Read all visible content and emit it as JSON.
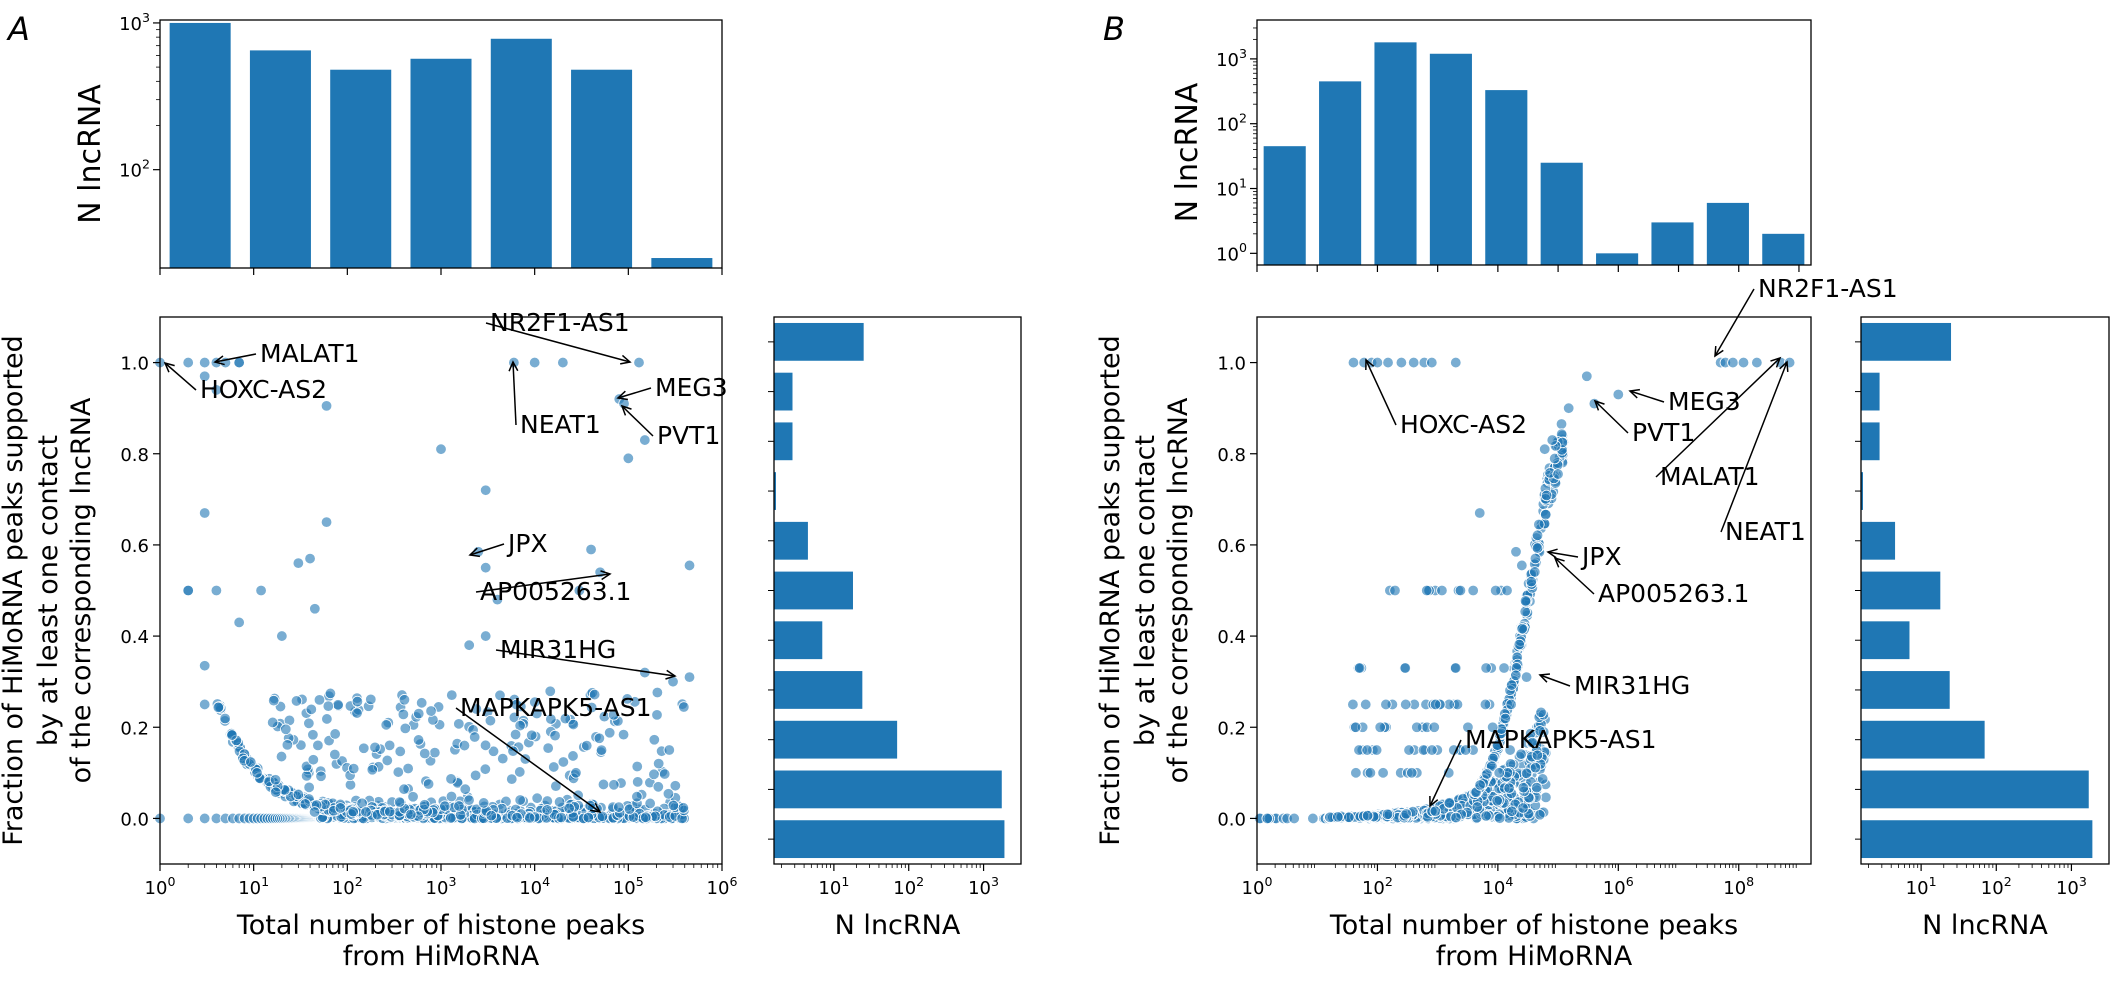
{
  "panels": [
    {
      "letter": "A",
      "hist_top": {
        "ylabel": "N lncRNA",
        "yticks": [
          "10^2",
          "10^3"
        ],
        "values": [
          1000,
          650,
          480,
          570,
          780,
          480,
          25
        ]
      },
      "scatter": {
        "xlabel": [
          "Total number of histone peaks",
          "from HiMoRNA"
        ],
        "ylabel": [
          "Fraction of HiMoRNA peaks supported",
          "by at least one contact",
          "of the corresponding lncRNA"
        ],
        "xticks": [
          "10^0",
          "10^1",
          "10^2",
          "10^3",
          "10^4",
          "10^5",
          "10^6"
        ],
        "yticks": [
          "0.0",
          "0.2",
          "0.4",
          "0.6",
          "0.8",
          "1.0"
        ],
        "annotations": [
          {
            "text": "MALAT1",
            "x": 7,
            "y": 1.0
          },
          {
            "text": "HOXC-AS2",
            "x": 1,
            "y": 1.0
          },
          {
            "text": "NR2F1-AS1",
            "x": 130000,
            "y": 1.0
          },
          {
            "text": "MEG3",
            "x": 80000,
            "y": 0.92
          },
          {
            "text": "NEAT1",
            "x": 6000,
            "y": 1.0
          },
          {
            "text": "PVT1",
            "x": 90000,
            "y": 0.91
          },
          {
            "text": "JPX",
            "x": 2500,
            "y": 0.585
          },
          {
            "text": "AP005263.1",
            "x": 40000,
            "y": 0.54
          },
          {
            "text": "MIR31HG",
            "x": 400000,
            "y": 0.31
          },
          {
            "text": "MAPKAPK5-AS1",
            "x": 60000,
            "y": 0.0
          }
        ]
      },
      "hist_right": {
        "xlabel": "N lncRNA",
        "xticks": [
          "10^1",
          "10^2",
          "10^3"
        ],
        "values": [
          1900,
          1750,
          70,
          24,
          7,
          18,
          4.5,
          1.6,
          2.8,
          2.8,
          25
        ]
      }
    },
    {
      "letter": "B",
      "hist_top": {
        "ylabel": "N lncRNA",
        "yticks": [
          "10^0",
          "10^1",
          "10^2",
          "10^3"
        ],
        "values": [
          45,
          450,
          1800,
          1200,
          330,
          25,
          1,
          3,
          6,
          2
        ]
      },
      "scatter": {
        "xlabel": [
          "Total number of histone peaks",
          "from HiMoRNA"
        ],
        "ylabel": [
          "Fraction of HiMoRNA peaks supported",
          "by at least one contact",
          "of the corresponding lncRNA"
        ],
        "xticks": [
          "10^0",
          "10^2",
          "10^4",
          "10^6",
          "10^8"
        ],
        "yticks": [
          "0.0",
          "0.2",
          "0.4",
          "0.6",
          "0.8",
          "1.0"
        ],
        "annotations": [
          {
            "text": "NR2F1-AS1",
            "x": 50000000,
            "y": 1.0
          },
          {
            "text": "HOXC-AS2",
            "x": 60,
            "y": 1.0
          },
          {
            "text": "MEG3",
            "x": 1000000,
            "y": 0.93
          },
          {
            "text": "PVT1",
            "x": 400000,
            "y": 0.91
          },
          {
            "text": "MALAT1",
            "x": 500000000,
            "y": 1.0
          },
          {
            "text": "NEAT1",
            "x": 500000000,
            "y": 1.0
          },
          {
            "text": "JPX",
            "x": 20000,
            "y": 0.585
          },
          {
            "text": "AP005263.1",
            "x": 25000,
            "y": 0.555
          },
          {
            "text": "MIR31HG",
            "x": 30000,
            "y": 0.31
          },
          {
            "text": "MAPKAPK5-AS1",
            "x": 300,
            "y": 0.01
          }
        ]
      },
      "hist_right": {
        "xlabel": "N lncRNA",
        "xticks": [
          "10^1",
          "10^2",
          "10^3"
        ],
        "values": [
          1900,
          1700,
          70,
          24,
          7,
          18,
          4.5,
          1.6,
          2.8,
          2.8,
          25
        ]
      }
    }
  ],
  "chart_data": [
    {
      "type": "bar",
      "panel": "A",
      "role": "top marginal histogram",
      "ylabel": "N lncRNA",
      "ylog": true,
      "values": [
        1000,
        650,
        480,
        570,
        780,
        480,
        25
      ]
    },
    {
      "type": "scatter",
      "panel": "A",
      "xlabel": "Total number of histone peaks from HiMoRNA",
      "ylabel": "Fraction of HiMoRNA peaks supported by at least one contact of the corresponding lncRNA",
      "xlog": true,
      "xlim": [
        1,
        1000000
      ],
      "ylim": [
        -0.1,
        1.1
      ]
    },
    {
      "type": "bar",
      "panel": "A",
      "role": "right marginal histogram (horizontal, bottom to top)",
      "xlabel": "N lncRNA",
      "xlog": true,
      "values": [
        1900,
        1750,
        70,
        24,
        7,
        18,
        4.5,
        1.6,
        2.8,
        2.8,
        25
      ]
    },
    {
      "type": "bar",
      "panel": "B",
      "role": "top marginal histogram",
      "ylabel": "N lncRNA",
      "ylog": true,
      "values": [
        45,
        450,
        1800,
        1200,
        330,
        25,
        1,
        3,
        6,
        2
      ]
    },
    {
      "type": "scatter",
      "panel": "B",
      "xlabel": "Total number of histone peaks from HiMoRNA",
      "ylabel": "Fraction of HiMoRNA peaks supported by at least one contact of the corresponding lncRNA",
      "xlog": true,
      "xlim": [
        1,
        10000000000
      ],
      "ylim": [
        -0.1,
        1.1
      ]
    },
    {
      "type": "bar",
      "panel": "B",
      "role": "right marginal histogram (horizontal, bottom to top)",
      "xlabel": "N lncRNA",
      "xlog": true,
      "values": [
        1900,
        1700,
        70,
        24,
        7,
        18,
        4.5,
        1.6,
        2.8,
        2.8,
        25
      ]
    }
  ]
}
